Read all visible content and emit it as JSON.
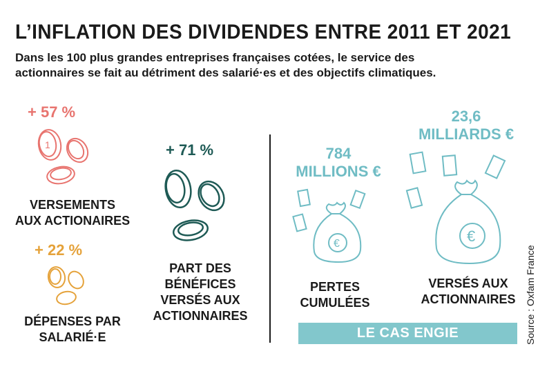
{
  "header": {
    "title": "L’INFLATION DES DIVIDENDES ENTRE 2011 ET 2021",
    "subtitle_line1": "Dans les 100 plus grandes entreprises françaises cotées, le service des",
    "subtitle_line2": "actionnaires se fait au détriment des salarié·es et des objectifs climatiques."
  },
  "stats": {
    "versements": {
      "value": "+ 57 %",
      "label_line1": "VERSEMENTS",
      "label_line2": "AUX ACTIONAIRES",
      "color": "#e8746f"
    },
    "depenses": {
      "value": "+ 22 %",
      "label_line1": "DÉPENSES PAR",
      "label_line2": "SALARIÉ·E",
      "color": "#e5a23a"
    },
    "part": {
      "value": "+ 71 %",
      "label_line1": "PART DES",
      "label_line2": "BÉNÉFICES",
      "label_line3": "VERSÉS AUX",
      "label_line4": "ACTIONNAIRES",
      "color": "#1e5a55"
    }
  },
  "engie": {
    "pertes": {
      "value_line1": "784",
      "value_line2": "MILLIONS €",
      "label_line1": "PERTES",
      "label_line2": "CUMULÉES"
    },
    "verses": {
      "value_line1": "23,6",
      "value_line2": "MILLIARDS €",
      "label_line1": "VERSÉS AUX",
      "label_line2": "ACTIONNAIRES"
    },
    "banner": "LE CAS ENGIE",
    "accent": "#6fbcc4"
  },
  "source": "Source : Oxfam France",
  "icons": [
    "coin-icon",
    "money-bag-icon",
    "banknote-icon",
    "euro-icon"
  ]
}
